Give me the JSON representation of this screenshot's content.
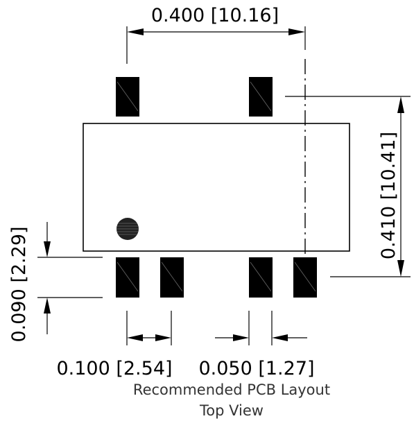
{
  "dimensions": {
    "pad_span": "0.400 [10.16]",
    "row_span": "0.410 [10.41]",
    "pad_length": "0.090 [2.29]",
    "pitch_left": "0.100 [2.54]",
    "gap_right": "0.050 [1.27]"
  },
  "caption": {
    "line1": "Recommended PCB Layout",
    "line2": "Top View"
  },
  "colors": {
    "ink": "#000000",
    "caption": "#333333"
  }
}
